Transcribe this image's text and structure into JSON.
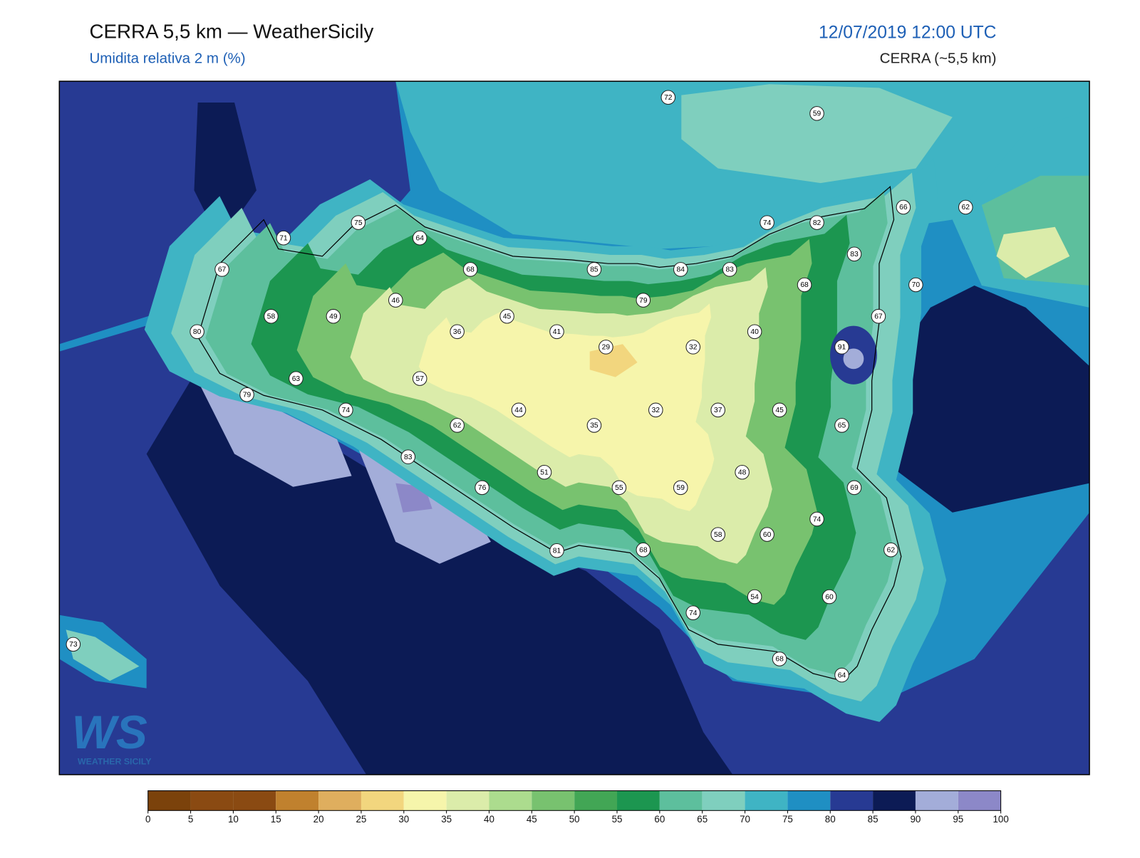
{
  "header": {
    "title": "CERRA 5,5 km — WeatherSicily",
    "subtitle": "Umidita relativa 2 m (%)",
    "datetime": "12/07/2019 12:00 UTC",
    "model": "CERRA (~5,5 km)"
  },
  "stations": [
    "72",
    "59",
    "66",
    "62",
    "75",
    "64",
    "74",
    "82",
    "71",
    "83",
    "67",
    "68",
    "85",
    "84",
    "83",
    "68",
    "70",
    "46",
    "79",
    "58",
    "49",
    "45",
    "67",
    "80",
    "36",
    "41",
    "40",
    "29",
    "32",
    "91",
    "63",
    "57",
    "79",
    "74",
    "44",
    "35",
    "32",
    "37",
    "45",
    "62",
    "65",
    "83",
    "51",
    "48",
    "76",
    "55",
    "59",
    "69",
    "74",
    "58",
    "60",
    "62",
    "81",
    "68",
    "54",
    "60",
    "74",
    "73",
    "68",
    "64"
  ],
  "colorbar": {
    "ticks": [
      0,
      5,
      10,
      15,
      20,
      25,
      30,
      35,
      40,
      45,
      50,
      55,
      60,
      65,
      70,
      75,
      80,
      85,
      90,
      95,
      100
    ],
    "colors": [
      "#7b420b",
      "#8a4a12",
      "#8a4a12",
      "#c0812e",
      "#dfae5e",
      "#f2d67e",
      "#f6f5ab",
      "#dbecaa",
      "#acdc8e",
      "#78c26f",
      "#42a655",
      "#1c9650",
      "#5dbf9d",
      "#7fcfbe",
      "#3fb4c4",
      "#1f8fc3",
      "#273a93",
      "#0c1b55",
      "#a3add9",
      "#8c88c8"
    ]
  },
  "logo": {
    "mark": "WS",
    "name": "WEATHER SICILY"
  }
}
